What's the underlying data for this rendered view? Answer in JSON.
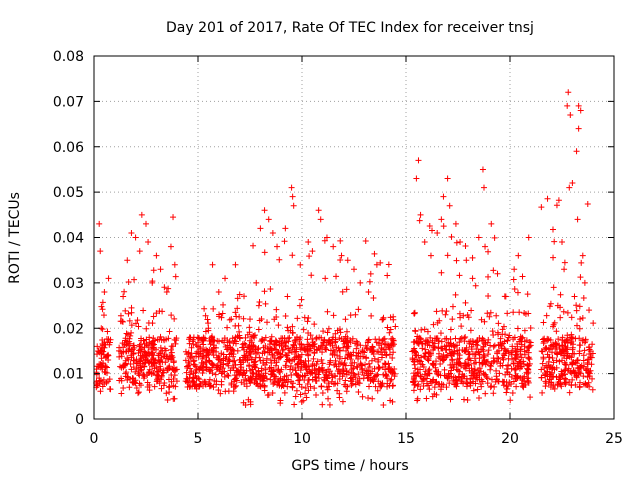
{
  "chart_data": {
    "type": "scatter",
    "title": "Day 201 of 2017, Rate Of TEC Index for receiver tnsj",
    "xlabel": "GPS time / hours",
    "ylabel": "ROTI / TECUs",
    "xlim": [
      0,
      25
    ],
    "ylim": [
      0,
      0.08
    ],
    "x_ticks": [
      0,
      5,
      10,
      15,
      20,
      25
    ],
    "x_tick_labels": [
      "0",
      "5",
      "10",
      "15",
      "20",
      "25"
    ],
    "y_ticks": [
      0,
      0.01,
      0.02,
      0.03,
      0.04,
      0.05,
      0.06,
      0.07,
      0.08
    ],
    "y_tick_labels": [
      "0",
      "0.01",
      "0.02",
      "0.03",
      "0.04",
      "0.05",
      "0.06",
      "0.07",
      "0.08"
    ],
    "grid": true,
    "marker": "plus",
    "color": "#ff0000",
    "segments": [
      {
        "x_start": 0.1,
        "x_end": 0.8,
        "y_min": 0.005,
        "y_max": 0.043
      },
      {
        "x_start": 1.2,
        "x_end": 4.0,
        "y_min": 0.004,
        "y_max": 0.045
      },
      {
        "x_start": 4.4,
        "x_end": 5.2,
        "y_min": 0.006,
        "y_max": 0.018
      },
      {
        "x_start": 5.2,
        "x_end": 7.0,
        "y_min": 0.005,
        "y_max": 0.034
      },
      {
        "x_start": 7.0,
        "x_end": 14.5,
        "y_min": 0.003,
        "y_max": 0.052
      },
      {
        "x_start": 15.3,
        "x_end": 21.0,
        "y_min": 0.004,
        "y_max": 0.057
      },
      {
        "x_start": 21.5,
        "x_end": 24.0,
        "y_min": 0.005,
        "y_max": 0.072
      }
    ],
    "points": [
      [
        0.25,
        0.043
      ],
      [
        0.3,
        0.037
      ],
      [
        0.5,
        0.028
      ],
      [
        0.7,
        0.031
      ],
      [
        0.2,
        0.015
      ],
      [
        0.4,
        0.011
      ],
      [
        0.6,
        0.008
      ],
      [
        0.35,
        0.02
      ],
      [
        1.4,
        0.027
      ],
      [
        1.6,
        0.035
      ],
      [
        1.8,
        0.041
      ],
      [
        2.0,
        0.04
      ],
      [
        2.2,
        0.037
      ],
      [
        2.3,
        0.045
      ],
      [
        2.5,
        0.043
      ],
      [
        2.6,
        0.039
      ],
      [
        2.8,
        0.03
      ],
      [
        3.0,
        0.036
      ],
      [
        3.2,
        0.033
      ],
      [
        3.5,
        0.028
      ],
      [
        3.7,
        0.038
      ],
      [
        3.8,
        0.0445
      ],
      [
        1.5,
        0.012
      ],
      [
        2.4,
        0.009
      ],
      [
        3.1,
        0.014
      ],
      [
        3.6,
        0.007
      ],
      [
        4.6,
        0.018
      ],
      [
        4.8,
        0.012
      ],
      [
        5.0,
        0.016
      ],
      [
        5.5,
        0.02
      ],
      [
        5.7,
        0.034
      ],
      [
        6.0,
        0.028
      ],
      [
        6.3,
        0.031
      ],
      [
        6.6,
        0.022
      ],
      [
        6.8,
        0.034
      ],
      [
        7.5,
        0.022
      ],
      [
        7.8,
        0.03
      ],
      [
        8.0,
        0.042
      ],
      [
        8.2,
        0.046
      ],
      [
        8.4,
        0.044
      ],
      [
        8.6,
        0.041
      ],
      [
        8.8,
        0.038
      ],
      [
        9.2,
        0.042
      ],
      [
        9.5,
        0.051
      ],
      [
        9.55,
        0.049
      ],
      [
        9.6,
        0.047
      ],
      [
        9.3,
        0.027
      ],
      [
        9.9,
        0.025
      ],
      [
        10.3,
        0.039
      ],
      [
        10.5,
        0.037
      ],
      [
        10.8,
        0.046
      ],
      [
        10.9,
        0.044
      ],
      [
        11.2,
        0.04
      ],
      [
        11.5,
        0.038
      ],
      [
        11.9,
        0.036
      ],
      [
        12.2,
        0.035
      ],
      [
        12.5,
        0.033
      ],
      [
        12.8,
        0.03
      ],
      [
        13.2,
        0.028
      ],
      [
        13.6,
        0.034
      ],
      [
        13.9,
        0.022
      ],
      [
        14.2,
        0.019
      ],
      [
        15.6,
        0.057
      ],
      [
        15.5,
        0.053
      ],
      [
        15.7,
        0.045
      ],
      [
        15.9,
        0.039
      ],
      [
        16.2,
        0.036
      ],
      [
        16.5,
        0.041
      ],
      [
        16.7,
        0.044
      ],
      [
        16.8,
        0.049
      ],
      [
        17.0,
        0.053
      ],
      [
        17.1,
        0.047
      ],
      [
        17.4,
        0.043
      ],
      [
        17.6,
        0.039
      ],
      [
        17.9,
        0.035
      ],
      [
        18.2,
        0.031
      ],
      [
        18.5,
        0.04
      ],
      [
        18.7,
        0.055
      ],
      [
        18.75,
        0.051
      ],
      [
        18.8,
        0.038
      ],
      [
        19.1,
        0.043
      ],
      [
        19.4,
        0.032
      ],
      [
        19.8,
        0.027
      ],
      [
        20.2,
        0.033
      ],
      [
        20.4,
        0.036
      ],
      [
        20.9,
        0.04
      ],
      [
        22.1,
        0.029
      ],
      [
        22.3,
        0.025
      ],
      [
        22.5,
        0.039
      ],
      [
        22.8,
        0.072
      ],
      [
        22.75,
        0.069
      ],
      [
        22.9,
        0.067
      ],
      [
        23.0,
        0.052
      ],
      [
        22.85,
        0.051
      ],
      [
        23.2,
        0.059
      ],
      [
        23.3,
        0.069
      ],
      [
        23.4,
        0.068
      ],
      [
        23.3,
        0.064
      ],
      [
        23.25,
        0.044
      ],
      [
        23.5,
        0.036
      ],
      [
        23.6,
        0.03
      ],
      [
        23.8,
        0.024
      ],
      [
        22.6,
        0.033
      ],
      [
        23.1,
        0.027
      ]
    ]
  }
}
